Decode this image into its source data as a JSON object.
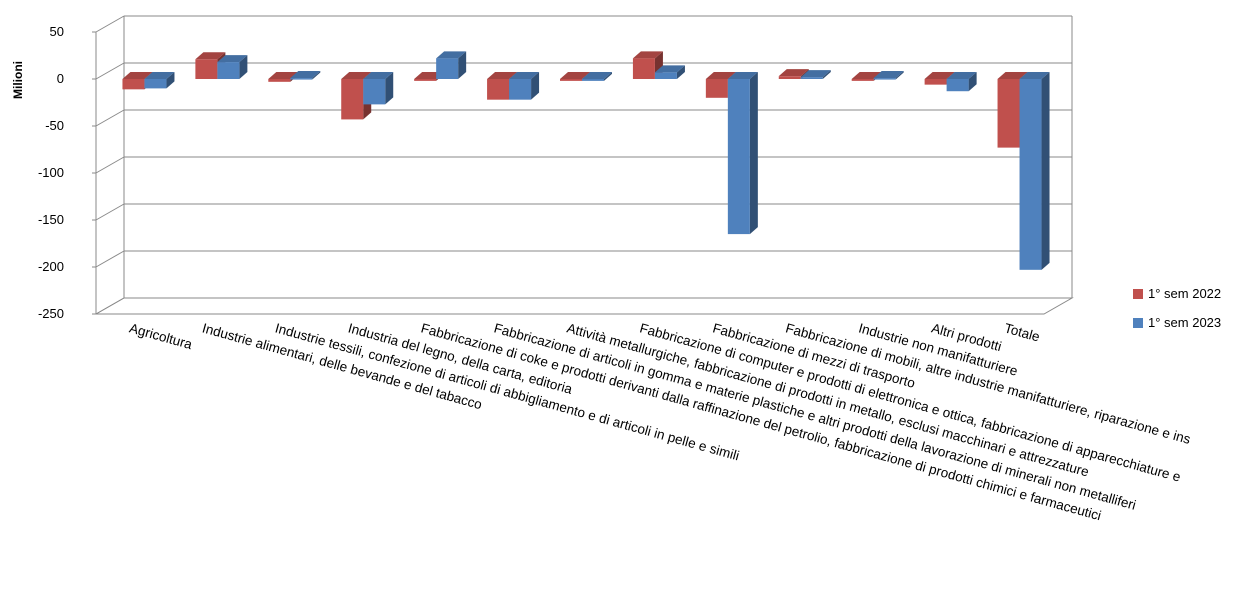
{
  "chart_data": {
    "type": "bar",
    "title": "",
    "xlabel": "",
    "ylabel": "Milioni",
    "ylim": [
      -250,
      50
    ],
    "yticks": [
      50,
      0,
      -50,
      -100,
      -150,
      -200,
      -250
    ],
    "grid": true,
    "legend_position": "right",
    "categories": [
      "Agricoltura",
      "Industrie alimentari, delle bevande e del tabacco",
      "Industrie tessili, confezione di articoli di abbigliamento e di articoli in pelle e simili",
      "Industria del legno, della carta, editoria",
      "Fabbricazione di coke e prodotti derivanti dalla raffinazione del petrolio, fabbricazione di prodotti chimici e farmaceutici",
      "Fabbricazione di articoli in gomma e materie plastiche e altri prodotti della lavorazione di minerali non metalliferi",
      "Attività metallurgiche, fabbricazione di prodotti in metallo, esclusi macchinari e attrezzature",
      "Fabbricazione di computer e prodotti di elettronica e ottica, fabbricazione di apparecchiature e",
      "Fabbricazione di mezzi di trasporto",
      "Fabbricazione di mobili, altre industrie manifatturiere, riparazione e ins",
      "Industrie non manifatturiere",
      "Altri prodotti",
      "Totale"
    ],
    "series": [
      {
        "name": "1° sem 2022",
        "color": "#c0504d",
        "values": [
          -11,
          21,
          -3,
          -43,
          -2,
          -22,
          -2,
          22,
          -20,
          3,
          -2,
          -6,
          -73
        ]
      },
      {
        "name": "1° sem 2023",
        "color": "#4f81bd",
        "values": [
          -10,
          18,
          1,
          -27,
          22,
          -22,
          -2,
          7,
          -165,
          2,
          1,
          -13,
          -203
        ]
      }
    ]
  }
}
